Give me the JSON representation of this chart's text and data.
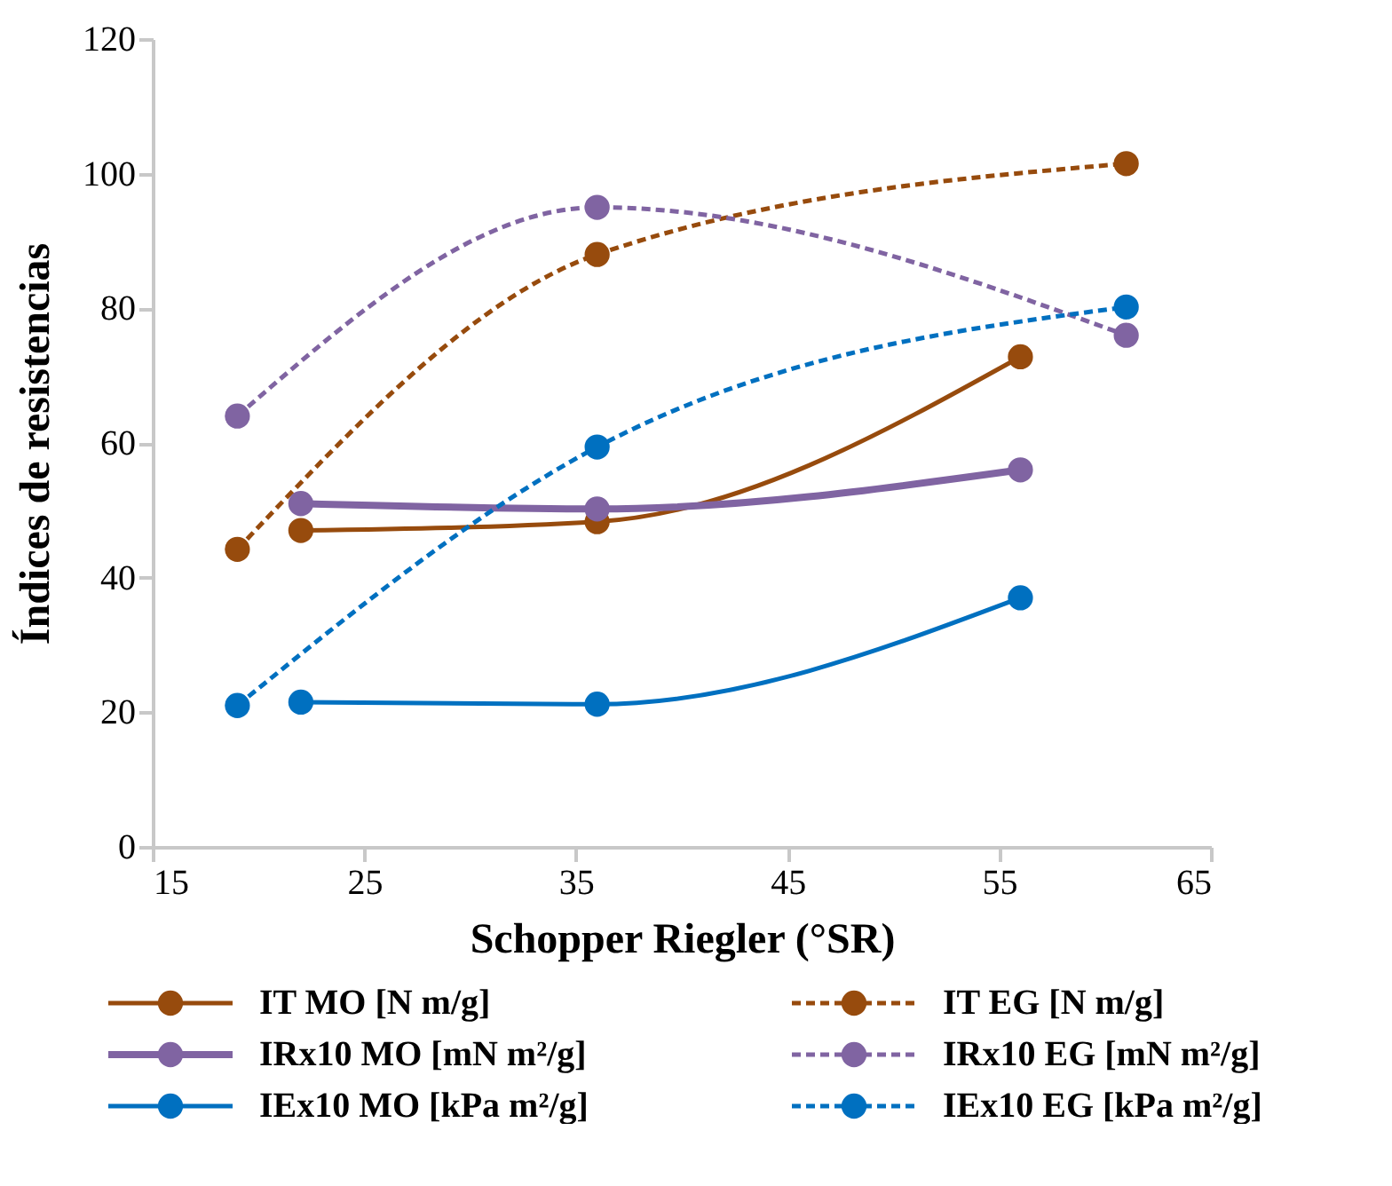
{
  "chart_data": {
    "type": "line",
    "xlabel": "Schopper Riegler  (°SR)",
    "ylabel": "Índices de resistencias",
    "xlim": [
      15,
      65
    ],
    "xticks": [
      15,
      25,
      35,
      45,
      55,
      65
    ],
    "ylim": [
      0,
      120
    ],
    "yticks": [
      0,
      20,
      40,
      60,
      80,
      100,
      120
    ],
    "grid": false,
    "legend": "bottom",
    "marker": "circle",
    "series": [
      {
        "name": "IT MO [N m/g]",
        "color": "#974b0d",
        "line_style": "solid",
        "x": [
          22,
          36,
          56
        ],
        "values": [
          47,
          48.3,
          72.8
        ]
      },
      {
        "name": "IT EG [N m/g]",
        "color": "#974b0d",
        "line_style": "dashed",
        "x": [
          19,
          36,
          61
        ],
        "values": [
          44.2,
          88,
          101.5
        ]
      },
      {
        "name": "IRx10 MO [mN m²/g]",
        "color": "#8064a2",
        "line_style": "solid",
        "x": [
          22,
          36,
          56
        ],
        "values": [
          51,
          50.2,
          56
        ]
      },
      {
        "name": "IRx10 EG [mN m²/g]",
        "color": "#8064a2",
        "line_style": "dashed",
        "x": [
          19,
          36,
          61
        ],
        "values": [
          64,
          95,
          76
        ]
      },
      {
        "name": "IEx10 MO [kPa m²/g]",
        "color": "#0070c0",
        "line_style": "solid",
        "x": [
          22,
          36,
          56
        ],
        "values": [
          21.5,
          21.2,
          37
        ]
      },
      {
        "name": "IEx10 EG [kPa m²/g]",
        "color": "#0070c0",
        "line_style": "dashed",
        "x": [
          19,
          36,
          61
        ],
        "values": [
          21,
          59.4,
          80.2
        ]
      }
    ]
  }
}
